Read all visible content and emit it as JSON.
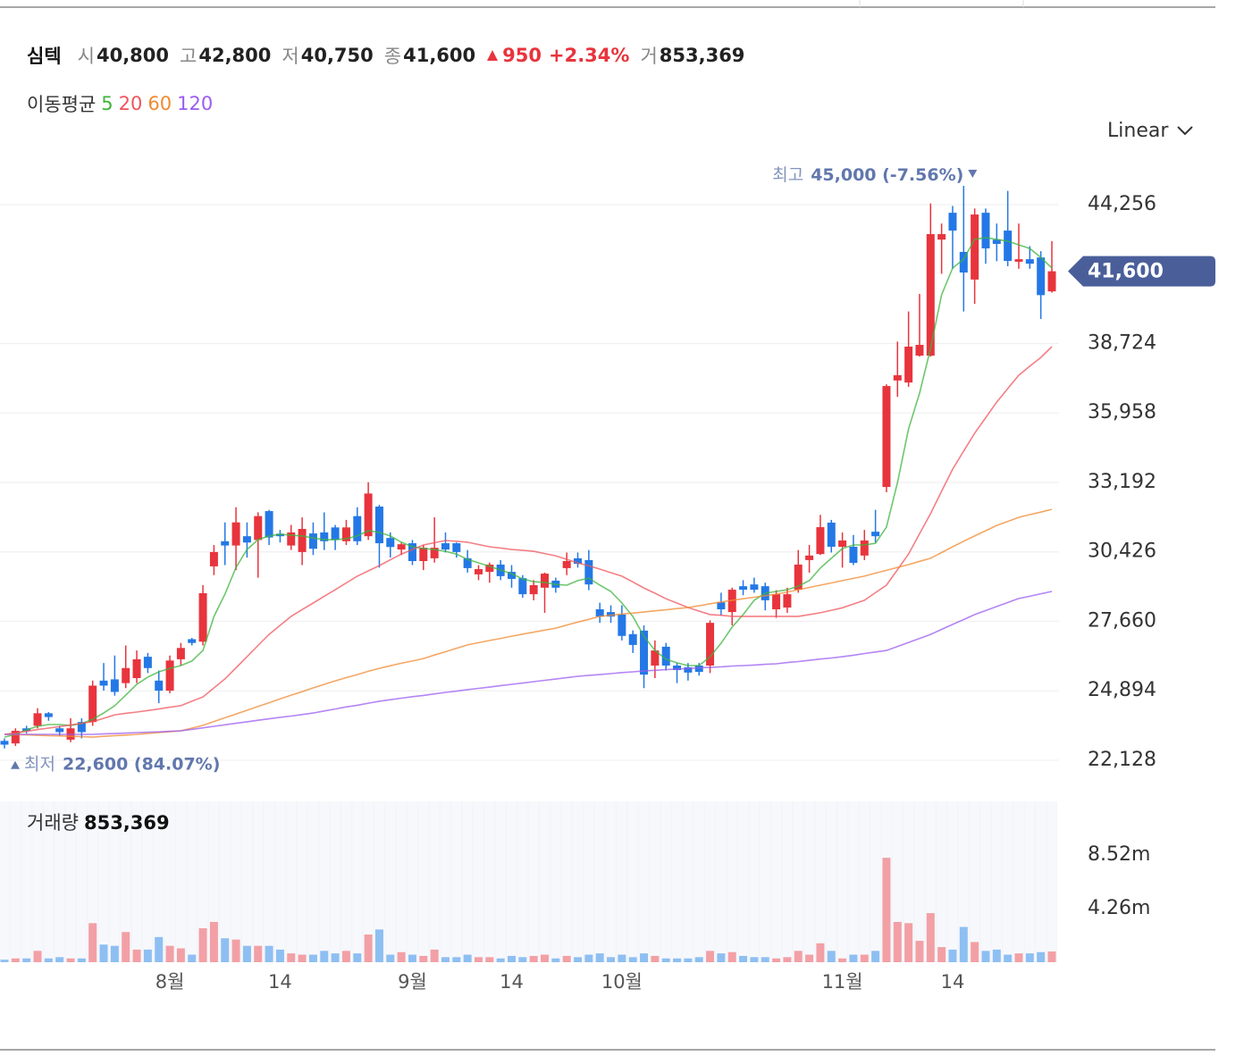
{
  "header": {
    "name": "심텍",
    "items": [
      {
        "label": "시",
        "value": "40,800"
      },
      {
        "label": "고",
        "value": "42,800"
      },
      {
        "label": "저",
        "value": "40,750"
      },
      {
        "label": "종",
        "value": "41,600"
      }
    ],
    "change": "950",
    "change_pct": "+2.34%",
    "volume_label": "거",
    "volume": "853,369"
  },
  "ma_legend": "이동평균",
  "scale_menu": "Linear",
  "chart_data": [
    {
      "type": "candlestick",
      "categories": [
        null,
        null,
        null,
        null,
        null,
        null,
        null,
        null,
        null,
        null,
        null,
        null,
        null,
        null,
        null,
        "8월",
        null,
        null,
        null,
        null,
        null,
        null,
        null,
        null,
        null,
        "14",
        null,
        null,
        null,
        null,
        null,
        null,
        null,
        null,
        null,
        null,
        null,
        "9월",
        null,
        null,
        null,
        null,
        null,
        null,
        null,
        null,
        "14",
        null,
        null,
        null,
        null,
        null,
        null,
        null,
        null,
        null,
        "10월",
        null,
        null,
        null,
        null,
        null,
        null,
        null,
        null,
        null,
        null,
        null,
        null,
        null,
        null,
        null,
        null,
        null,
        null,
        null,
        "11월",
        null,
        null,
        null,
        null,
        null,
        null,
        null,
        null,
        null,
        "14",
        null,
        null,
        null,
        null,
        null,
        null,
        null,
        null,
        null
      ],
      "open": [
        22900,
        22800,
        23400,
        23500,
        24000,
        23400,
        22950,
        23650,
        23650,
        25300,
        25350,
        25200,
        25400,
        26250,
        25300,
        24900,
        26150,
        26950,
        26850,
        29850,
        30850,
        30680,
        31050,
        30900,
        32050,
        31150,
        30680,
        30420,
        31160,
        31200,
        31400,
        30850,
        31850,
        31050,
        32230,
        30980,
        30520,
        30770,
        30060,
        30170,
        30770,
        30770,
        30170,
        29530,
        29630,
        29920,
        29630,
        29380,
        28740,
        29000,
        29280,
        29780,
        30170,
        30100,
        28140,
        28030,
        27930,
        27150,
        27290,
        25900,
        26650,
        25900,
        25830,
        25900,
        25900,
        28420,
        28030,
        29060,
        29130,
        29060,
        28140,
        28210,
        28920,
        30100,
        30340,
        31590,
        30630,
        30630,
        30280,
        31230,
        33010,
        37250,
        37170,
        38240,
        38240,
        42860,
        43930,
        42370,
        41270,
        43930,
        42860,
        43220,
        41980,
        42080,
        42150,
        40800
      ],
      "high": [
        23000,
        23400,
        23500,
        24200,
        24050,
        23500,
        23800,
        23800,
        25300,
        26000,
        26300,
        26700,
        26500,
        26400,
        25700,
        26300,
        26800,
        27000,
        29100,
        30700,
        31600,
        32200,
        31600,
        32000,
        32100,
        31300,
        31500,
        31800,
        31600,
        32000,
        31500,
        31700,
        32200,
        33200,
        32300,
        31200,
        30800,
        30900,
        30700,
        31800,
        31200,
        30800,
        30500,
        29900,
        30000,
        30100,
        29900,
        29500,
        29300,
        29600,
        29400,
        30400,
        30400,
        30500,
        28400,
        28300,
        28300,
        27300,
        27500,
        26900,
        26800,
        26000,
        26000,
        26000,
        27700,
        28800,
        29000,
        29300,
        29400,
        29200,
        28900,
        29000,
        30500,
        30700,
        31900,
        31700,
        31200,
        31100,
        31300,
        32100,
        37100,
        38800,
        40000,
        40700,
        44300,
        43500,
        44200,
        45000,
        44100,
        44100,
        43500,
        44800,
        43500,
        42600,
        42400,
        42800
      ],
      "low": [
        22600,
        22700,
        23200,
        23400,
        23700,
        23100,
        22850,
        23000,
        23500,
        24900,
        24700,
        25000,
        25200,
        25600,
        24400,
        24800,
        25900,
        26700,
        26700,
        29500,
        29900,
        29700,
        30200,
        29400,
        30700,
        30800,
        30500,
        29900,
        30300,
        30500,
        30500,
        30700,
        30700,
        30900,
        29800,
        30200,
        30300,
        29900,
        29700,
        30000,
        30400,
        30200,
        29600,
        29300,
        29200,
        29300,
        29000,
        28600,
        28500,
        28000,
        28800,
        29500,
        29800,
        28900,
        27600,
        27600,
        26900,
        26400,
        25000,
        25400,
        25700,
        25200,
        25300,
        25500,
        25600,
        27900,
        27500,
        28700,
        28800,
        28100,
        27800,
        28000,
        28800,
        29600,
        30300,
        30400,
        29800,
        29900,
        30100,
        30800,
        32800,
        36600,
        37000,
        38200,
        38200,
        41500,
        41700,
        40000,
        40300,
        41900,
        42000,
        41800,
        41700,
        41700,
        39700,
        40750
      ],
      "close": [
        22750,
        23300,
        23300,
        24000,
        23850,
        23250,
        23400,
        23250,
        25100,
        25100,
        24850,
        25800,
        26150,
        25800,
        24900,
        26100,
        26600,
        26800,
        28780,
        30420,
        30680,
        31600,
        30800,
        31850,
        31000,
        31050,
        31200,
        31340,
        30550,
        30850,
        30900,
        31400,
        30850,
        32750,
        30770,
        30620,
        30730,
        30060,
        30590,
        30590,
        30520,
        30420,
        29780,
        29740,
        29920,
        29460,
        29350,
        28740,
        29100,
        29560,
        29000,
        30060,
        29950,
        29130,
        27850,
        27850,
        27080,
        26720,
        25540,
        26500,
        25900,
        25720,
        25620,
        25650,
        27600,
        28140,
        28920,
        28920,
        28920,
        28500,
        28740,
        28740,
        29920,
        30280,
        31410,
        30630,
        30880,
        29990,
        30880,
        31050,
        37030,
        37460,
        38600,
        38670,
        43080,
        43080,
        43220,
        41550,
        43860,
        42510,
        42690,
        42010,
        42080,
        41900,
        40650,
        41600
      ],
      "up_color": "#e8343d",
      "down_color": "#2478e6",
      "series": [
        {
          "name": "5",
          "color": "#3cb43c",
          "values": [
            23050,
            23160,
            23340,
            23480,
            23550,
            23550,
            23520,
            23590,
            23760,
            24010,
            24300,
            24720,
            25150,
            25440,
            25650,
            25790,
            25900,
            26080,
            26500,
            27850,
            28740,
            29810,
            30520,
            30910,
            31060,
            31130,
            31090,
            31060,
            30980,
            30910,
            30910,
            30950,
            31060,
            31270,
            31200,
            31060,
            30810,
            30630,
            30560,
            30520,
            30450,
            30340,
            30130,
            29990,
            29850,
            29700,
            29560,
            29350,
            29240,
            29210,
            29130,
            29100,
            29280,
            29380,
            29100,
            28850,
            28390,
            27850,
            27070,
            26500,
            26150,
            26010,
            25900,
            25900,
            26250,
            26790,
            27430,
            27930,
            28500,
            28780,
            28850,
            28920,
            29060,
            29280,
            29780,
            30170,
            30560,
            30700,
            30700,
            30770,
            31410,
            33190,
            35320,
            36750,
            38530,
            40660,
            41730,
            42080,
            42870,
            42940,
            42870,
            42800,
            42650,
            42510,
            42150,
            41730
          ]
        },
        {
          "name": "20",
          "color": "#f0545c",
          "values": [
            23160,
            23220,
            23280,
            23350,
            23410,
            23470,
            23530,
            23600,
            23660,
            23800,
            23940,
            24000,
            24050,
            24110,
            24170,
            24240,
            24300,
            24480,
            24650,
            25010,
            25370,
            25810,
            26250,
            26700,
            27140,
            27500,
            27860,
            28130,
            28390,
            28660,
            28920,
            29190,
            29460,
            29670,
            29880,
            30110,
            30340,
            30520,
            30700,
            30790,
            30880,
            30850,
            30810,
            30720,
            30630,
            30580,
            30520,
            30490,
            30450,
            30360,
            30270,
            30130,
            29990,
            29870,
            29740,
            29600,
            29460,
            29230,
            28990,
            28780,
            28560,
            28390,
            28210,
            28070,
            27930,
            27900,
            27860,
            27860,
            27860,
            27860,
            27860,
            27860,
            27860,
            27930,
            28000,
            28100,
            28200,
            28350,
            28500,
            28800,
            29100,
            29720,
            30340,
            31150,
            31950,
            32840,
            33720,
            34440,
            35150,
            35770,
            36390,
            36930,
            37460,
            37820,
            38170,
            38600
          ]
        },
        {
          "name": "60",
          "color": "#f08a30",
          "values": [
            23160,
            23150,
            23140,
            23120,
            23110,
            23100,
            23080,
            23070,
            23050,
            23080,
            23110,
            23130,
            23160,
            23200,
            23230,
            23270,
            23300,
            23410,
            23520,
            23670,
            23820,
            23970,
            24120,
            24270,
            24420,
            24570,
            24720,
            24860,
            25010,
            25150,
            25290,
            25420,
            25540,
            25670,
            25790,
            25890,
            25990,
            26080,
            26180,
            26320,
            26450,
            26590,
            26720,
            26810,
            26900,
            26980,
            27070,
            27150,
            27230,
            27310,
            27390,
            27510,
            27630,
            27740,
            27860,
            27900,
            27950,
            27990,
            28030,
            28080,
            28120,
            28170,
            28210,
            28280,
            28360,
            28430,
            28500,
            28560,
            28620,
            28680,
            28740,
            28830,
            28920,
            29010,
            29100,
            29190,
            29280,
            29370,
            29460,
            29580,
            29690,
            29810,
            29920,
            30050,
            30170,
            30400,
            30630,
            30850,
            31060,
            31270,
            31480,
            31640,
            31800,
            31910,
            32010,
            32120
          ]
        },
        {
          "name": "120",
          "color": "#9b5cf0",
          "values": [
            23160,
            23160,
            23160,
            23160,
            23160,
            23160,
            23160,
            23160,
            23160,
            23180,
            23190,
            23210,
            23230,
            23250,
            23260,
            23280,
            23300,
            23360,
            23420,
            23480,
            23540,
            23600,
            23660,
            23720,
            23780,
            23840,
            23890,
            23950,
            24010,
            24090,
            24170,
            24250,
            24320,
            24400,
            24480,
            24540,
            24600,
            24660,
            24710,
            24770,
            24830,
            24880,
            24940,
            24990,
            25040,
            25100,
            25150,
            25200,
            25260,
            25310,
            25360,
            25420,
            25470,
            25510,
            25540,
            25580,
            25620,
            25650,
            25690,
            25710,
            25740,
            25760,
            25780,
            25810,
            25830,
            25850,
            25880,
            25900,
            25920,
            25950,
            25970,
            26020,
            26060,
            26110,
            26160,
            26200,
            26250,
            26310,
            26380,
            26440,
            26500,
            26660,
            26820,
            26980,
            27140,
            27340,
            27540,
            27730,
            27930,
            28090,
            28250,
            28410,
            28570,
            28660,
            28760,
            28850
          ]
        }
      ],
      "ylim": [
        21096,
        46354
      ],
      "yticks": [
        {
          "value": 22128,
          "label": "22,128"
        },
        {
          "value": 24894,
          "label": "24,894"
        },
        {
          "value": 27660,
          "label": "27,660"
        },
        {
          "value": 30426,
          "label": "30,426"
        },
        {
          "value": 33192,
          "label": "33,192"
        },
        {
          "value": 35958,
          "label": "35,958"
        },
        {
          "value": 38724,
          "label": "38,724"
        },
        {
          "value": 44256,
          "label": "44,256"
        }
      ],
      "grid": true,
      "last_price": {
        "value": 41600,
        "label": "41,600",
        "color": "#4a5f9a"
      },
      "high_marker": {
        "label": "최고",
        "text": "45,000 (-7.56%)"
      },
      "low_marker": {
        "label": "최저",
        "text": "22,600 (84.07%)"
      }
    },
    {
      "type": "bar",
      "title": "거래량",
      "title_value": "853,369",
      "values": [
        200000,
        300000,
        300000,
        900000,
        300000,
        400000,
        300000,
        300000,
        3100000,
        1400000,
        1300000,
        2400000,
        1000000,
        1000000,
        2000000,
        1300000,
        1100000,
        600000,
        2700000,
        3200000,
        1900000,
        1800000,
        1300000,
        1300000,
        1300000,
        1000000,
        700000,
        600000,
        600000,
        900000,
        700000,
        900000,
        700000,
        2200000,
        2600000,
        600000,
        800000,
        600000,
        500000,
        1000000,
        400000,
        400000,
        600000,
        400000,
        400000,
        300000,
        500000,
        400000,
        500000,
        600000,
        300000,
        500000,
        400000,
        600000,
        700000,
        400000,
        600000,
        400000,
        700000,
        500000,
        300000,
        300000,
        300000,
        400000,
        900000,
        700000,
        800000,
        500000,
        400000,
        400000,
        300000,
        400000,
        900000,
        600000,
        1500000,
        900000,
        300000,
        600000,
        600000,
        900000,
        8300000,
        3200000,
        3100000,
        1700000,
        3900000,
        1200000,
        1000000,
        2800000,
        1600000,
        900000,
        1000000,
        600000,
        700000,
        700000,
        800000,
        853369
      ],
      "up_color": "#f2a0a5",
      "down_color": "#8ebff2",
      "ylim": [
        0,
        12780000
      ],
      "yticks": [
        {
          "value": 4260000,
          "label": "4.26m"
        },
        {
          "value": 8520000,
          "label": "8.52m"
        }
      ]
    }
  ]
}
